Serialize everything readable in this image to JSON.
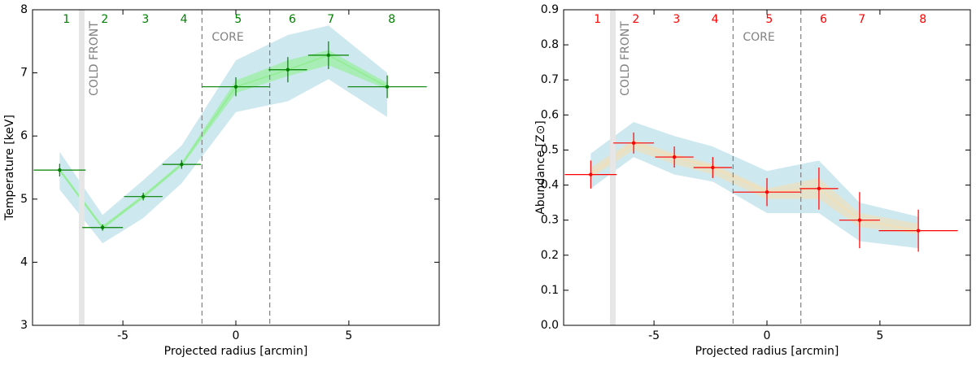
{
  "chart_data": [
    {
      "type": "errorbar",
      "xlabel": "Projected radius [arcmin]",
      "ylabel": "Temperature [keV]",
      "xlim": [
        -9,
        9
      ],
      "ylim": [
        3,
        8
      ],
      "xticks": [
        -5,
        0,
        5
      ],
      "yticks": [
        3,
        4,
        5,
        6,
        7,
        8
      ],
      "x": [
        -7.8,
        -5.9,
        -4.1,
        -2.4,
        0,
        2.3,
        4.1,
        6.7
      ],
      "xerr": [
        1.15,
        0.9,
        0.85,
        0.85,
        1.5,
        0.85,
        0.9,
        1.75
      ],
      "values": [
        5.46,
        4.55,
        5.04,
        5.55,
        6.78,
        7.05,
        7.28,
        6.78
      ],
      "yerr": [
        0.1,
        0.05,
        0.06,
        0.07,
        0.15,
        0.2,
        0.22,
        0.18
      ],
      "color": "#008000",
      "line_color": "#90ee90",
      "outer_band": {
        "color": "#add8e6",
        "low": [
          5.15,
          4.3,
          4.7,
          5.25,
          6.38,
          6.55,
          6.9,
          6.3
        ],
        "high": [
          5.75,
          4.75,
          5.3,
          5.85,
          7.2,
          7.6,
          7.75,
          7.0
        ]
      },
      "inner_band": {
        "color": "#90ee90",
        "low": [
          5.43,
          4.52,
          5.01,
          5.52,
          6.68,
          6.95,
          7.12,
          6.74
        ],
        "high": [
          5.49,
          4.58,
          5.07,
          5.58,
          6.88,
          7.2,
          7.36,
          6.84
        ]
      },
      "regions": {
        "labels": [
          "1",
          "2",
          "3",
          "4",
          "5",
          "6",
          "7",
          "8"
        ],
        "x": [
          -7.5,
          -5.8,
          -4.0,
          -2.3,
          0.1,
          2.5,
          4.2,
          6.9
        ]
      },
      "cold_front": {
        "label": "COLD FRONT",
        "x": [
          -6.95,
          -6.7
        ]
      },
      "core": {
        "label": "CORE",
        "x": [
          -1.5,
          1.5
        ]
      }
    },
    {
      "type": "errorbar",
      "xlabel": "Projected radius [arcmin]",
      "ylabel": "Abundance [Z⊙]",
      "xlim": [
        -9,
        9
      ],
      "ylim": [
        0,
        0.9
      ],
      "xticks": [
        -5,
        0,
        5
      ],
      "yticks": [
        {
          "value": 0,
          "label": "0.0"
        },
        0.1,
        0.2,
        0.3,
        0.4,
        0.5,
        0.6,
        0.7,
        0.8,
        0.9
      ],
      "x": [
        -7.8,
        -5.9,
        -4.1,
        -2.4,
        0,
        2.3,
        4.1,
        6.7
      ],
      "xerr": [
        1.15,
        0.9,
        0.85,
        0.85,
        1.5,
        0.85,
        0.9,
        1.75
      ],
      "values": [
        0.43,
        0.52,
        0.48,
        0.45,
        0.38,
        0.39,
        0.3,
        0.27
      ],
      "yerr": [
        0.04,
        0.03,
        0.03,
        0.03,
        0.04,
        0.06,
        0.08,
        0.06
      ],
      "color": "#ff0000",
      "line_color": "#f5deb3",
      "outer_band": {
        "color": "#add8e6",
        "low": [
          0.39,
          0.48,
          0.43,
          0.41,
          0.32,
          0.32,
          0.24,
          0.22
        ],
        "high": [
          0.49,
          0.58,
          0.54,
          0.51,
          0.44,
          0.47,
          0.35,
          0.31
        ]
      },
      "inner_band": {
        "color": "#f5deb3",
        "low": [
          0.42,
          0.5,
          0.46,
          0.43,
          0.36,
          0.36,
          0.28,
          0.26
        ],
        "high": [
          0.45,
          0.53,
          0.49,
          0.46,
          0.39,
          0.42,
          0.32,
          0.29
        ]
      },
      "regions": {
        "labels": [
          "1",
          "2",
          "3",
          "4",
          "5",
          "6",
          "7",
          "8"
        ],
        "x": [
          -7.5,
          -5.8,
          -4.0,
          -2.3,
          0.1,
          2.5,
          4.2,
          6.9
        ]
      },
      "cold_front": {
        "label": "COLD FRONT",
        "x": [
          -6.95,
          -6.7
        ]
      },
      "core": {
        "label": "CORE",
        "x": [
          -1.5,
          1.5
        ]
      }
    }
  ]
}
